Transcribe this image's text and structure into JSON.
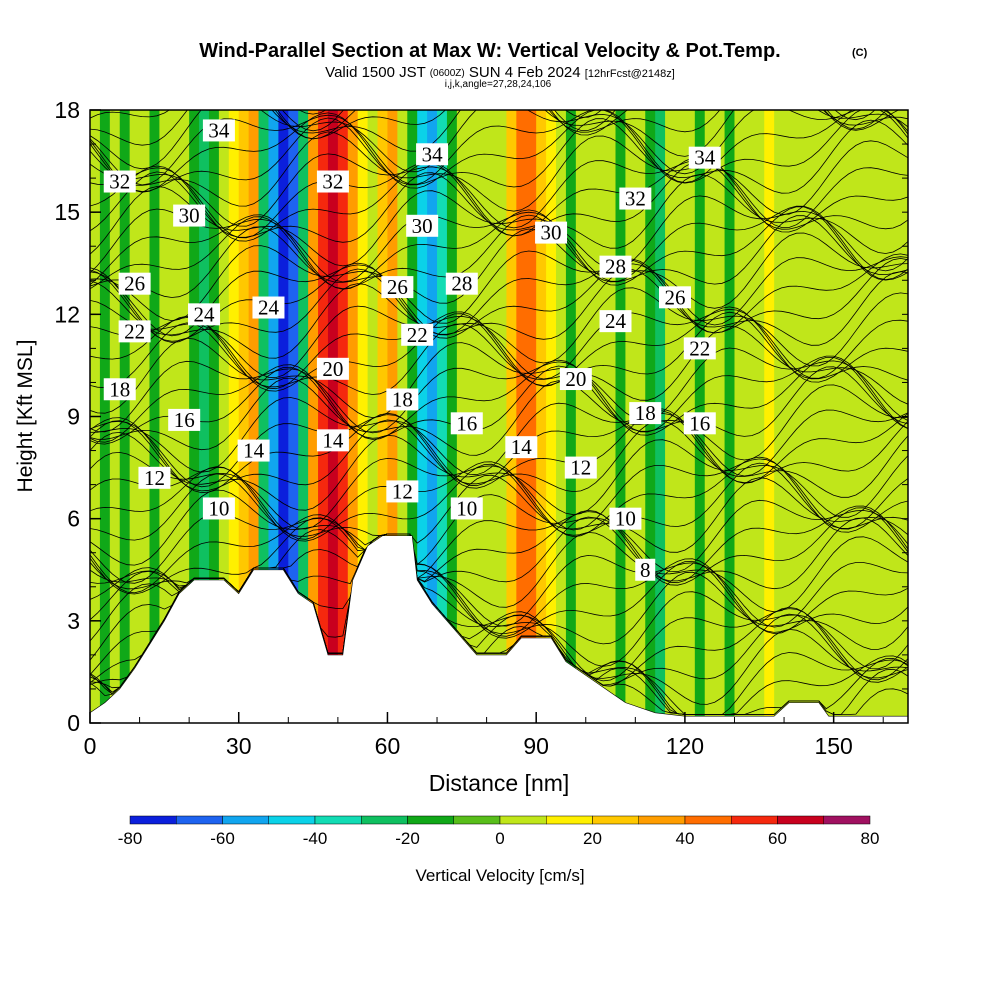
{
  "chart_data": {
    "type": "heatmap",
    "title": "Wind-Parallel Section at Max W: Vertical Velocity & Pot.Temp.",
    "title_mark": "(C)",
    "subtitle_main_a": "Valid 1500 JST",
    "subtitle_small_a": "(0600Z)",
    "subtitle_main_b": "SUN 4 Feb 2024",
    "subtitle_small_b": "[12hrFcst@2148z]",
    "subtitle2": "i,j,k,angle=27,28,24,106",
    "xlabel": "Distance [nm]",
    "ylabel": "Height [Kft MSL]",
    "xlim": [
      0,
      165
    ],
    "ylim": [
      0,
      18
    ],
    "x_ticks": [
      "0",
      "30",
      "60",
      "90",
      "120",
      "150"
    ],
    "x_tick_values": [
      0,
      30,
      60,
      90,
      120,
      150
    ],
    "y_ticks": [
      "0",
      "3",
      "6",
      "9",
      "12",
      "15",
      "18"
    ],
    "y_tick_values": [
      0,
      3,
      6,
      9,
      12,
      15,
      18
    ],
    "colorbar": {
      "label": "Vertical Velocity [cm/s]",
      "tick_labels": [
        "-80",
        "-60",
        "-40",
        "-20",
        "0",
        "20",
        "40",
        "60",
        "80"
      ],
      "tick_values": [
        -80,
        -60,
        -40,
        -20,
        0,
        20,
        40,
        60,
        80
      ],
      "bins": [
        -80,
        -70,
        -60,
        -50,
        -40,
        -30,
        -20,
        -10,
        0,
        10,
        20,
        30,
        40,
        50,
        60,
        70,
        80
      ],
      "colors": [
        "#0b1fdc",
        "#1e63f0",
        "#11a5ef",
        "#0bd2e8",
        "#12dcb4",
        "#0fc060",
        "#10a818",
        "#58be1a",
        "#c0e61a",
        "#fff000",
        "#ffc800",
        "#ff9d00",
        "#ff6d00",
        "#f5280e",
        "#c8001e",
        "#a01060",
        "#6c1480"
      ]
    },
    "vertical_velocity_columns": [
      {
        "x": 1,
        "w": 0
      },
      {
        "x": 3,
        "w": -15
      },
      {
        "x": 5,
        "w": 0
      },
      {
        "x": 7,
        "w": -12
      },
      {
        "x": 9,
        "w": 0
      },
      {
        "x": 11,
        "w": 5
      },
      {
        "x": 13,
        "w": -15
      },
      {
        "x": 15,
        "w": 0
      },
      {
        "x": 17,
        "w": 8
      },
      {
        "x": 19,
        "w": 0
      },
      {
        "x": 21,
        "w": -12
      },
      {
        "x": 23,
        "w": -22
      },
      {
        "x": 25,
        "w": -12
      },
      {
        "x": 27,
        "w": 5
      },
      {
        "x": 29,
        "w": 12
      },
      {
        "x": 31,
        "w": 22
      },
      {
        "x": 33,
        "w": 35
      },
      {
        "x": 35,
        "w": -25
      },
      {
        "x": 37,
        "w": -55
      },
      {
        "x": 39,
        "w": -78
      },
      {
        "x": 41,
        "w": -62
      },
      {
        "x": 43,
        "w": -25
      },
      {
        "x": 45,
        "w": 32
      },
      {
        "x": 47,
        "w": 52
      },
      {
        "x": 49,
        "w": 68
      },
      {
        "x": 51,
        "w": 55
      },
      {
        "x": 53,
        "w": 35
      },
      {
        "x": 55,
        "w": 12
      },
      {
        "x": 57,
        "w": 5
      },
      {
        "x": 59,
        "w": 22
      },
      {
        "x": 61,
        "w": 30
      },
      {
        "x": 63,
        "w": 5
      },
      {
        "x": 65,
        "w": -15
      },
      {
        "x": 67,
        "w": -42
      },
      {
        "x": 69,
        "w": -58
      },
      {
        "x": 71,
        "w": -32
      },
      {
        "x": 73,
        "w": -15
      },
      {
        "x": 75,
        "w": 5
      },
      {
        "x": 77,
        "w": 0
      },
      {
        "x": 79,
        "w": 8
      },
      {
        "x": 81,
        "w": 2
      },
      {
        "x": 83,
        "w": 5
      },
      {
        "x": 85,
        "w": 28
      },
      {
        "x": 87,
        "w": 48
      },
      {
        "x": 89,
        "w": 42
      },
      {
        "x": 91,
        "w": 22
      },
      {
        "x": 93,
        "w": 12
      },
      {
        "x": 95,
        "w": 5
      },
      {
        "x": 97,
        "w": -15
      },
      {
        "x": 99,
        "w": 0
      },
      {
        "x": 101,
        "w": 8
      },
      {
        "x": 103,
        "w": 0
      },
      {
        "x": 105,
        "w": 5
      },
      {
        "x": 107,
        "w": -15
      },
      {
        "x": 109,
        "w": 5
      },
      {
        "x": 111,
        "w": 0
      },
      {
        "x": 113,
        "w": -12
      },
      {
        "x": 115,
        "w": -22
      },
      {
        "x": 117,
        "w": 0
      },
      {
        "x": 119,
        "w": 5
      },
      {
        "x": 121,
        "w": 0
      },
      {
        "x": 123,
        "w": -12
      },
      {
        "x": 125,
        "w": 5
      },
      {
        "x": 127,
        "w": 0
      },
      {
        "x": 129,
        "w": -15
      },
      {
        "x": 131,
        "w": 0
      },
      {
        "x": 133,
        "w": 5
      },
      {
        "x": 135,
        "w": 8
      },
      {
        "x": 137,
        "w": 12
      },
      {
        "x": 139,
        "w": 8
      },
      {
        "x": 141,
        "w": 5
      },
      {
        "x": 143,
        "w": 5
      },
      {
        "x": 145,
        "w": 5
      },
      {
        "x": 147,
        "w": 5
      },
      {
        "x": 149,
        "w": 5
      },
      {
        "x": 151,
        "w": 5
      },
      {
        "x": 153,
        "w": 5
      },
      {
        "x": 155,
        "w": 5
      },
      {
        "x": 157,
        "w": 5
      },
      {
        "x": 159,
        "w": 5
      },
      {
        "x": 161,
        "w": 5
      },
      {
        "x": 163,
        "w": 5
      }
    ],
    "terrain": [
      [
        0,
        0.3
      ],
      [
        3,
        0.6
      ],
      [
        6,
        1.0
      ],
      [
        9,
        1.6
      ],
      [
        12,
        2.3
      ],
      [
        15,
        3.0
      ],
      [
        18,
        3.8
      ],
      [
        21,
        4.2
      ],
      [
        27,
        4.2
      ],
      [
        30,
        3.8
      ],
      [
        33,
        4.5
      ],
      [
        39,
        4.5
      ],
      [
        42,
        3.8
      ],
      [
        45,
        3.5
      ],
      [
        48,
        2.0
      ],
      [
        51,
        2.0
      ],
      [
        53,
        4.2
      ],
      [
        56,
        5.2
      ],
      [
        59,
        5.5
      ],
      [
        65,
        5.5
      ],
      [
        66,
        4.2
      ],
      [
        69,
        3.5
      ],
      [
        72,
        3.0
      ],
      [
        75,
        2.5
      ],
      [
        78,
        2.0
      ],
      [
        84,
        2.0
      ],
      [
        87,
        2.5
      ],
      [
        93,
        2.5
      ],
      [
        96,
        1.8
      ],
      [
        99,
        1.5
      ],
      [
        102,
        1.2
      ],
      [
        105,
        0.9
      ],
      [
        108,
        0.6
      ],
      [
        114,
        0.3
      ],
      [
        120,
        0.2
      ],
      [
        138,
        0.2
      ],
      [
        141,
        0.6
      ],
      [
        147,
        0.6
      ],
      [
        149,
        0.2
      ],
      [
        165,
        0.2
      ]
    ],
    "theta_contour_labels": [
      {
        "text": "34",
        "x": 26,
        "y": 17.4
      },
      {
        "text": "32",
        "x": 6,
        "y": 15.9
      },
      {
        "text": "30",
        "x": 20,
        "y": 14.9
      },
      {
        "text": "26",
        "x": 9,
        "y": 12.9
      },
      {
        "text": "24",
        "x": 23,
        "y": 12.0
      },
      {
        "text": "24",
        "x": 36,
        "y": 12.2
      },
      {
        "text": "22",
        "x": 9,
        "y": 11.5
      },
      {
        "text": "18",
        "x": 6,
        "y": 9.8
      },
      {
        "text": "16",
        "x": 19,
        "y": 8.9
      },
      {
        "text": "14",
        "x": 33,
        "y": 8.0
      },
      {
        "text": "12",
        "x": 13,
        "y": 7.2
      },
      {
        "text": "10",
        "x": 26,
        "y": 6.3
      },
      {
        "text": "32",
        "x": 49,
        "y": 15.9
      },
      {
        "text": "20",
        "x": 49,
        "y": 10.4
      },
      {
        "text": "14",
        "x": 49,
        "y": 8.3
      },
      {
        "text": "34",
        "x": 69,
        "y": 16.7
      },
      {
        "text": "30",
        "x": 67,
        "y": 14.6
      },
      {
        "text": "26",
        "x": 62,
        "y": 12.8
      },
      {
        "text": "28",
        "x": 75,
        "y": 12.9
      },
      {
        "text": "22",
        "x": 66,
        "y": 11.4
      },
      {
        "text": "18",
        "x": 63,
        "y": 9.5
      },
      {
        "text": "16",
        "x": 76,
        "y": 8.8
      },
      {
        "text": "12",
        "x": 63,
        "y": 6.8
      },
      {
        "text": "10",
        "x": 76,
        "y": 6.3
      },
      {
        "text": "34",
        "x": 124,
        "y": 16.6
      },
      {
        "text": "32",
        "x": 110,
        "y": 15.4
      },
      {
        "text": "30",
        "x": 93,
        "y": 14.4
      },
      {
        "text": "28",
        "x": 106,
        "y": 13.4
      },
      {
        "text": "26",
        "x": 118,
        "y": 12.5
      },
      {
        "text": "24",
        "x": 106,
        "y": 11.8
      },
      {
        "text": "22",
        "x": 123,
        "y": 11.0
      },
      {
        "text": "20",
        "x": 98,
        "y": 10.1
      },
      {
        "text": "18",
        "x": 112,
        "y": 9.1
      },
      {
        "text": "16",
        "x": 123,
        "y": 8.8
      },
      {
        "text": "14",
        "x": 87,
        "y": 8.1
      },
      {
        "text": "12",
        "x": 99,
        "y": 7.5
      },
      {
        "text": "10",
        "x": 108,
        "y": 6.0
      },
      {
        "text": "8",
        "x": 112,
        "y": 4.5
      }
    ]
  }
}
